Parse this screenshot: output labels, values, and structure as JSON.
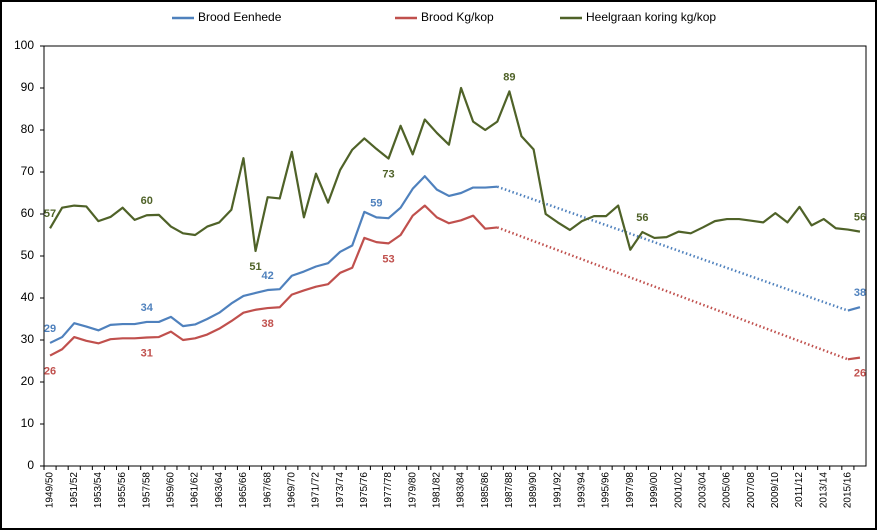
{
  "chart_data": {
    "type": "line",
    "categories": [
      "1949/50",
      null,
      "1951/52",
      null,
      "1953/54",
      null,
      "1955/56",
      null,
      "1957/58",
      null,
      "1959/60",
      null,
      "1961/62",
      null,
      "1963/64",
      null,
      "1965/66",
      null,
      "1967/68",
      null,
      "1969/70",
      null,
      "1971/72",
      null,
      "1973/74",
      null,
      "1975/76",
      null,
      "1977/78",
      null,
      "1979/80",
      null,
      "1981/82",
      null,
      "1983/84",
      null,
      "1985/86",
      null,
      "1987/88",
      null,
      "1989/90",
      null,
      "1991/92",
      null,
      "1993/94",
      null,
      "1995/96",
      null,
      "1997/98",
      null,
      "1999/00",
      null,
      "2001/02",
      null,
      "2003/04",
      null,
      "2005/06",
      null,
      "2007/08",
      null,
      "2009/10",
      null,
      "2011/12",
      null,
      "2013/14",
      null,
      "2015/16",
      null
    ],
    "series": [
      {
        "name": "Brood Eenhede",
        "color": "#4f81bd",
        "gap_line": "dotted",
        "values": [
          29.3,
          30.7,
          34,
          33.2,
          32.3,
          33.6,
          33.8,
          33.8,
          34.3,
          34.3,
          35.5,
          33.3,
          33.7,
          35,
          36.5,
          38.7,
          40.5,
          41.2,
          41.9,
          42.1,
          45.3,
          46.3,
          47.5,
          48.3,
          51,
          52.5,
          60.5,
          59.2,
          59,
          61.5,
          66,
          69,
          65.8,
          64.3,
          65,
          66.3,
          66.3,
          66.5,
          null,
          null,
          null,
          null,
          null,
          null,
          null,
          null,
          null,
          null,
          null,
          null,
          null,
          null,
          null,
          null,
          null,
          null,
          null,
          null,
          null,
          null,
          null,
          null,
          null,
          null,
          null,
          null,
          37,
          37.8
        ],
        "value_labels": [
          "29",
          null,
          null,
          null,
          null,
          null,
          null,
          null,
          "34",
          null,
          null,
          null,
          null,
          null,
          null,
          null,
          null,
          null,
          "42",
          null,
          null,
          null,
          null,
          null,
          null,
          null,
          null,
          "59",
          null,
          null,
          null,
          null,
          null,
          null,
          null,
          null,
          null,
          null,
          null,
          null,
          null,
          null,
          null,
          null,
          null,
          null,
          null,
          null,
          null,
          null,
          null,
          null,
          null,
          null,
          null,
          null,
          null,
          null,
          null,
          null,
          null,
          null,
          null,
          null,
          null,
          null,
          null,
          "38"
        ]
      },
      {
        "name": "Brood Kg/kop",
        "color": "#c0504d",
        "gap_line": "dotted",
        "values": [
          26.3,
          27.8,
          30.7,
          29.8,
          29.2,
          30.2,
          30.4,
          30.4,
          30.6,
          30.7,
          32,
          30,
          30.4,
          31.3,
          32.7,
          34.5,
          36.5,
          37.2,
          37.6,
          37.8,
          40.8,
          41.8,
          42.7,
          43.3,
          46,
          47.2,
          54.3,
          53.3,
          53,
          55,
          59.6,
          62,
          59.2,
          57.8,
          58.5,
          59.6,
          56.5,
          56.8,
          null,
          null,
          null,
          null,
          null,
          null,
          null,
          null,
          null,
          null,
          null,
          null,
          null,
          null,
          null,
          null,
          null,
          null,
          null,
          null,
          null,
          null,
          null,
          null,
          null,
          null,
          null,
          null,
          25.4,
          25.8
        ],
        "value_labels": [
          "26",
          null,
          null,
          null,
          null,
          null,
          null,
          null,
          "31",
          null,
          null,
          null,
          null,
          null,
          null,
          null,
          null,
          null,
          "38",
          null,
          null,
          null,
          null,
          null,
          null,
          null,
          null,
          null,
          "53",
          null,
          null,
          null,
          null,
          null,
          null,
          null,
          null,
          null,
          null,
          null,
          null,
          null,
          null,
          null,
          null,
          null,
          null,
          null,
          null,
          null,
          null,
          null,
          null,
          null,
          null,
          null,
          null,
          null,
          null,
          null,
          null,
          null,
          null,
          null,
          null,
          null,
          null,
          "26"
        ]
      },
      {
        "name": "Heelgraan koring kg/kop",
        "color": "#4f6228",
        "values": [
          56.6,
          61.5,
          62,
          61.8,
          58.3,
          59.3,
          61.5,
          58.6,
          59.7,
          59.8,
          57,
          55.4,
          55,
          57,
          58,
          61,
          73.3,
          51.2,
          64,
          63.7,
          74.8,
          59.2,
          69.6,
          62.7,
          70.5,
          75.3,
          78,
          75.5,
          73.2,
          81,
          74.2,
          82.5,
          79.3,
          76.5,
          90,
          82,
          80,
          82,
          89.2,
          78.5,
          75.4,
          60,
          58,
          56.2,
          58.3,
          59.5,
          59.5,
          62,
          51.5,
          55.7,
          54.3,
          54.5,
          55.8,
          55.4,
          56.8,
          58.3,
          58.8,
          58.8,
          58.4,
          58,
          60.2,
          58,
          61.7,
          57.3,
          58.8,
          56.6,
          56.3,
          55.8
        ],
        "value_labels": [
          "57",
          null,
          null,
          null,
          null,
          null,
          null,
          null,
          "60",
          null,
          null,
          null,
          null,
          null,
          null,
          null,
          null,
          "51",
          null,
          null,
          null,
          null,
          null,
          null,
          null,
          null,
          null,
          null,
          "73",
          null,
          null,
          null,
          null,
          null,
          null,
          null,
          null,
          null,
          "89",
          null,
          null,
          null,
          null,
          null,
          null,
          null,
          null,
          null,
          null,
          "56",
          null,
          null,
          null,
          null,
          null,
          null,
          null,
          null,
          null,
          null,
          null,
          null,
          null,
          null,
          null,
          null,
          null,
          "56"
        ]
      }
    ],
    "ylim": [
      0,
      100
    ],
    "yticks": [
      0,
      10,
      20,
      30,
      40,
      50,
      60,
      70,
      80,
      90,
      100
    ],
    "grid": false,
    "legend": "top"
  }
}
